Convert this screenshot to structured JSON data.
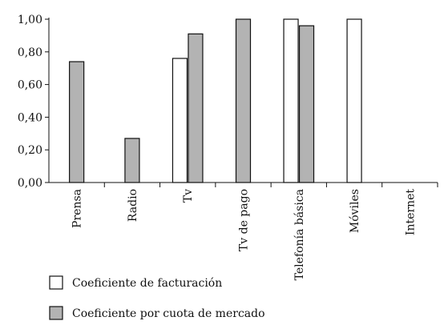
{
  "chart_data": {
    "type": "bar",
    "categories": [
      "Prensa",
      "Radio",
      "Tv",
      "Tv de pago",
      "Telefonía básica",
      "Móviles",
      "Internet"
    ],
    "series": [
      {
        "name": "Coeficiente de facturación",
        "values": [
          null,
          null,
          0.76,
          null,
          1.0,
          1.0,
          null
        ],
        "color": "#ffffff"
      },
      {
        "name": "Coeficiente por cuota de mercado",
        "values": [
          0.74,
          0.27,
          0.91,
          1.0,
          0.96,
          null,
          null
        ],
        "color": "#b3b3b3"
      }
    ],
    "ylim": [
      0,
      1
    ],
    "yticks": [
      0,
      0.2,
      0.4,
      0.6,
      0.8,
      1.0
    ],
    "ytick_labels": [
      "0,00",
      "0,20",
      "0,40",
      "0,60",
      "0,80",
      "1,00"
    ],
    "title": "",
    "xlabel": "",
    "ylabel": "",
    "grid": false,
    "legend_position": "bottom-left"
  }
}
